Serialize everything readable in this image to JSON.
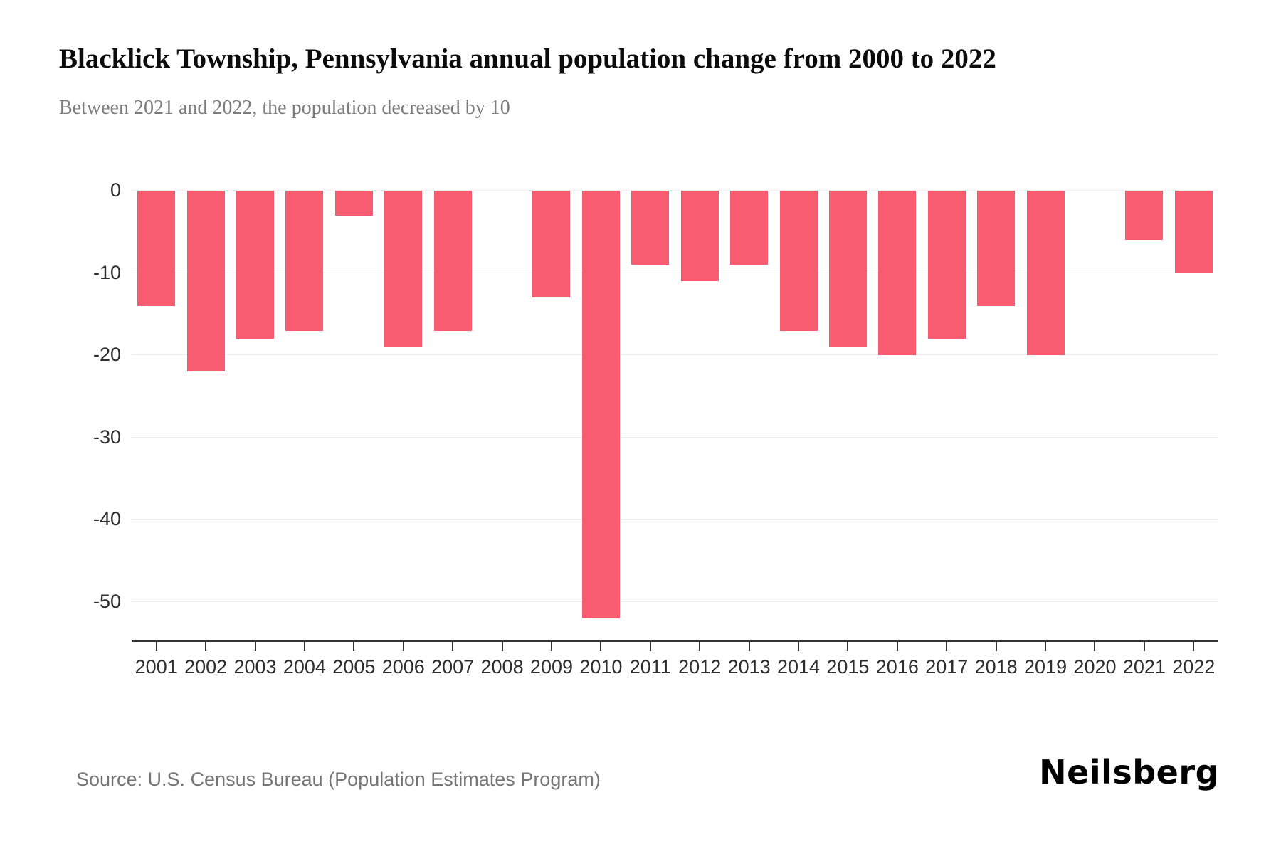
{
  "header": {
    "title": "Blacklick Township, Pennsylvania annual population change from 2000 to 2022",
    "subtitle": "Between 2021 and 2022, the population decreased by 10"
  },
  "footer": {
    "source": "Source: U.S. Census Bureau (Population Estimates Program)",
    "logo": "Neilsberg"
  },
  "chart_data": {
    "type": "bar",
    "title": "Blacklick Township, Pennsylvania annual population change from 2000 to 2022",
    "xlabel": "",
    "ylabel": "",
    "categories": [
      "2001",
      "2002",
      "2003",
      "2004",
      "2005",
      "2006",
      "2007",
      "2008",
      "2009",
      "2010",
      "2011",
      "2012",
      "2013",
      "2014",
      "2015",
      "2016",
      "2017",
      "2018",
      "2019",
      "2020",
      "2021",
      "2022"
    ],
    "values": [
      -14,
      -22,
      -18,
      -17,
      -3,
      -19,
      -17,
      0,
      -13,
      -52,
      -9,
      -11,
      -9,
      -17,
      -19,
      -20,
      -18,
      -14,
      -20,
      0,
      -6,
      -10
    ],
    "ylim": [
      -55,
      0
    ],
    "yticks": [
      0,
      -10,
      -20,
      -30,
      -40,
      -50
    ],
    "bar_color": "#F85C70",
    "grid": true,
    "legend": "none"
  }
}
